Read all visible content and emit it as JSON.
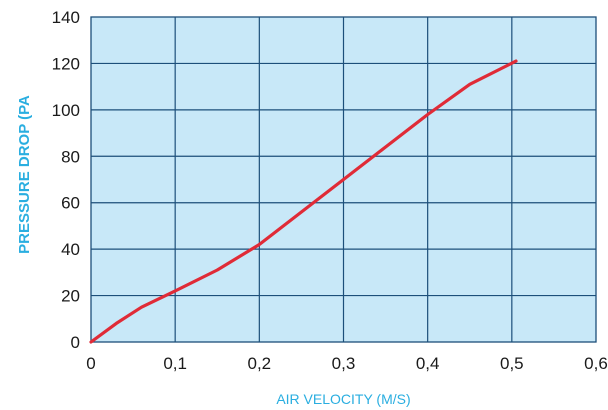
{
  "chart_data": {
    "type": "line",
    "title": "",
    "xlabel": "AIR VELOCITY (M/S)",
    "ylabel": "PRESSURE  DROP (PA",
    "xlim": [
      0,
      0.6
    ],
    "ylim": [
      0,
      140
    ],
    "x_ticks": [
      "0",
      "0,1",
      "0,2",
      "0,3",
      "0,4",
      "0,5",
      "0,6"
    ],
    "x_tick_values": [
      0,
      0.1,
      0.2,
      0.3,
      0.4,
      0.5,
      0.6
    ],
    "y_ticks": [
      "0",
      "20",
      "40",
      "60",
      "80",
      "100",
      "120",
      "140"
    ],
    "y_tick_values": [
      0,
      20,
      40,
      60,
      80,
      100,
      120,
      140
    ],
    "grid": true,
    "legend": "none",
    "series": [
      {
        "x": [
          0,
          0.03,
          0.06,
          0.1,
          0.15,
          0.2,
          0.25,
          0.3,
          0.35,
          0.4,
          0.45,
          0.505
        ],
        "y": [
          0,
          8,
          15,
          22,
          31,
          42,
          56,
          70,
          84,
          98,
          111,
          121
        ]
      }
    ],
    "colors": {
      "plot_background": "#c8e8f8",
      "grid": "#1c4f7a",
      "line": "#e02b37",
      "axis_title": "#2aaee0",
      "tick_text": "#1a1a1a"
    }
  }
}
